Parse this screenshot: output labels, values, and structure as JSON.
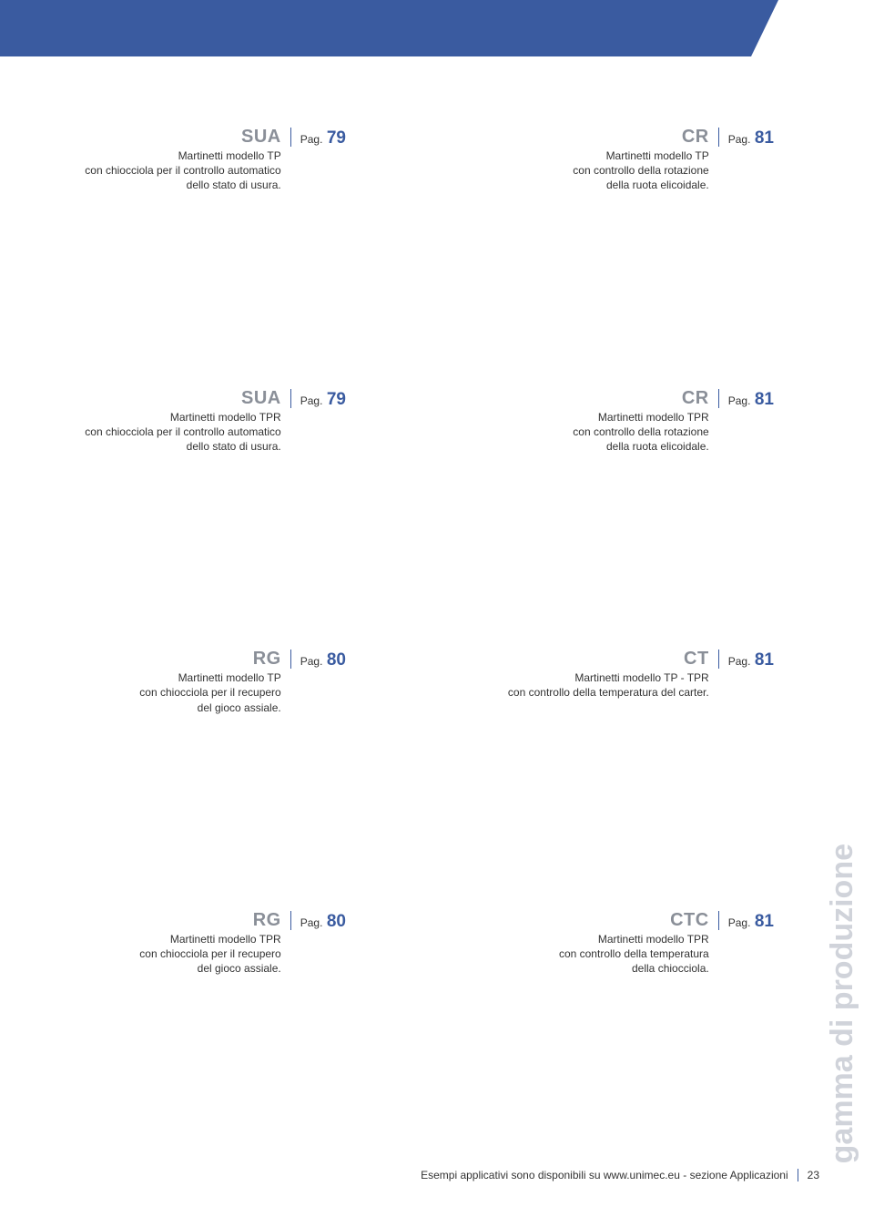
{
  "header": {
    "bar_color": "#3a5ba0"
  },
  "rows": [
    {
      "left": {
        "code": "SUA",
        "line1": "Martinetti modello TP",
        "line2": "con chiocciola per il controllo automatico",
        "line3": "dello stato di usura.",
        "pag_label": "Pag.",
        "pag_num": "79"
      },
      "right": {
        "code": "CR",
        "line1": "Martinetti modello TP",
        "line2": "con controllo della rotazione",
        "line3": "della ruota elicoidale.",
        "pag_label": "Pag.",
        "pag_num": "81"
      }
    },
    {
      "left": {
        "code": "SUA",
        "line1": "Martinetti modello TPR",
        "line2": "con chiocciola per il controllo automatico",
        "line3": "dello stato di usura.",
        "pag_label": "Pag.",
        "pag_num": "79"
      },
      "right": {
        "code": "CR",
        "line1": "Martinetti modello TPR",
        "line2": "con controllo della rotazione",
        "line3": "della ruota elicoidale.",
        "pag_label": "Pag.",
        "pag_num": "81"
      }
    },
    {
      "left": {
        "code": "RG",
        "line1": "Martinetti modello TP",
        "line2": "con chiocciola per il recupero",
        "line3": "del gioco assiale.",
        "pag_label": "Pag.",
        "pag_num": "80"
      },
      "right": {
        "code": "CT",
        "line1": "Martinetti modello TP - TPR",
        "line2": "con controllo della temperatura del carter.",
        "line3": "",
        "pag_label": "Pag.",
        "pag_num": "81"
      }
    },
    {
      "left": {
        "code": "RG",
        "line1": "Martinetti modello TPR",
        "line2": "con chiocciola per il recupero",
        "line3": "del gioco assiale.",
        "pag_label": "Pag.",
        "pag_num": "80"
      },
      "right": {
        "code": "CTC",
        "line1": "Martinetti modello TPR",
        "line2": "con controllo della temperatura",
        "line3": "della chiocciola.",
        "pag_label": "Pag.",
        "pag_num": "81"
      }
    }
  ],
  "side_text": "gamma di produzione",
  "footer": {
    "text": "Esempi applicativi sono disponibili su www.unimec.eu - sezione Applicazioni",
    "page": "23"
  },
  "colors": {
    "accent": "#3a5ba0",
    "code_gray": "#8a8f98",
    "side_gray": "#d0d3da",
    "text": "#333333"
  },
  "typography": {
    "code_fontsize": 20,
    "desc_fontsize": 12,
    "pagnum_fontsize": 19,
    "side_fontsize": 34
  }
}
